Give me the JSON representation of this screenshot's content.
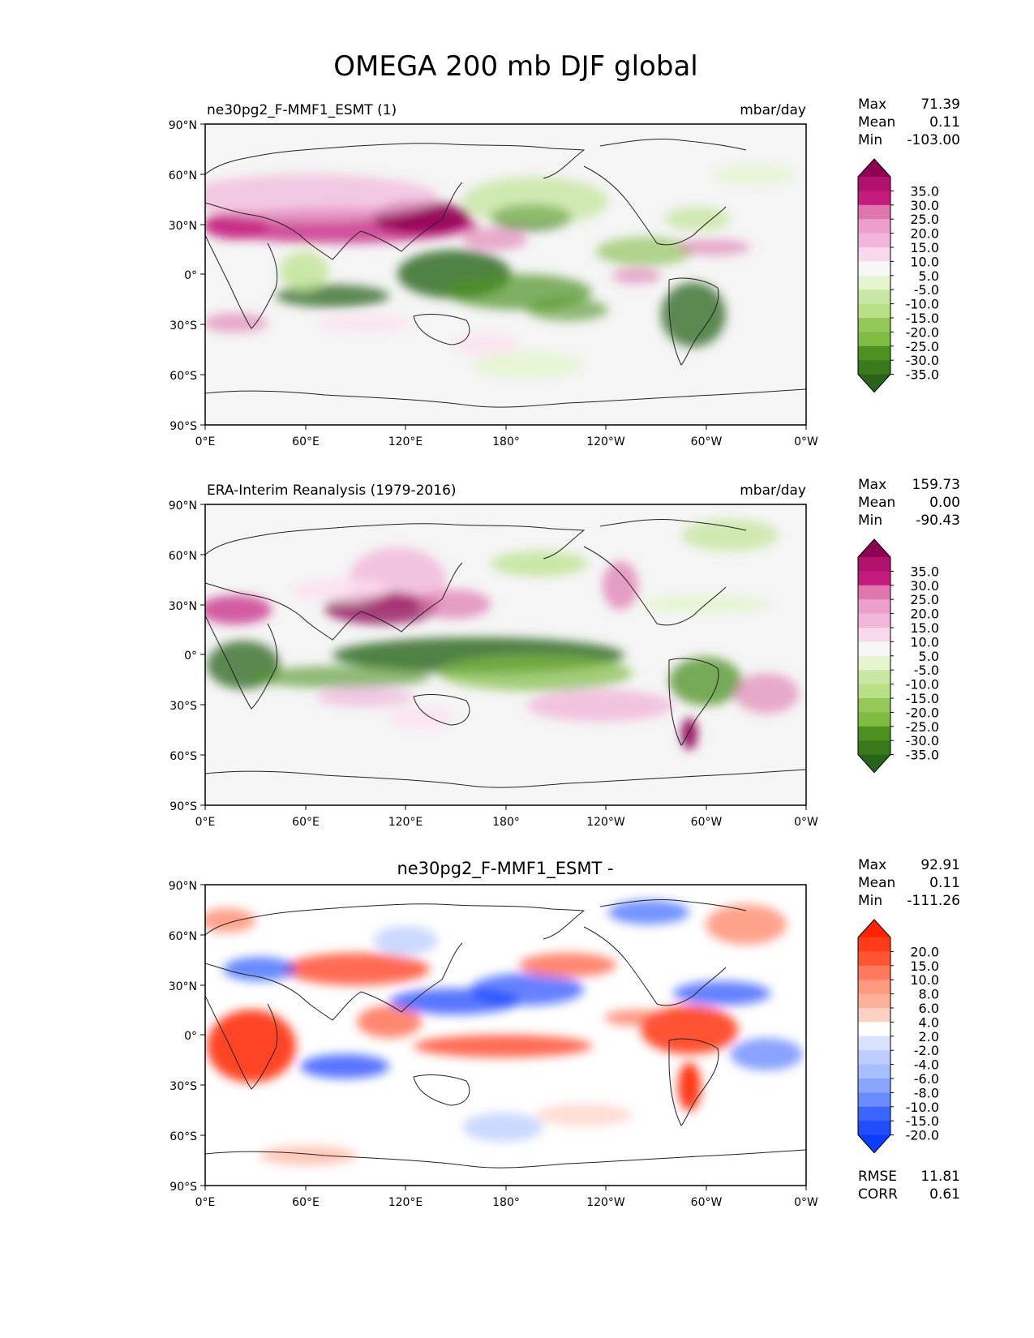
{
  "title": "OMEGA 200 mb DJF global",
  "lat_ticks": [
    "90°N",
    "60°N",
    "30°N",
    "0°",
    "30°S",
    "60°S",
    "90°S"
  ],
  "lon_ticks": [
    "0°E",
    "60°E",
    "120°E",
    "180°",
    "120°W",
    "60°W",
    "0°W"
  ],
  "colors": {
    "seq_top": "#8e0152",
    "seq_bottom": "#276419",
    "diff_top": "#ff2400",
    "diff_bottom": "#0a3dff",
    "ocean_bg": "#f5f5f5",
    "diff_bg": "#ffffff"
  },
  "panels": [
    {
      "left_title": "ne30pg2_F-MMF1_ESMT (1)",
      "right_title": "mbar/day",
      "center_title": "",
      "stats": {
        "max_label": "Max",
        "max_value": "71.39",
        "mean_label": "Mean",
        "mean_value": "0.11",
        "min_label": "Min",
        "min_value": "-103.00"
      },
      "colorbar": {
        "palette": "PiYG",
        "levels": [
          "35.0",
          "30.0",
          "25.0",
          "20.0",
          "15.0",
          "10.0",
          "5.0",
          "-5.0",
          "-10.0",
          "-15.0",
          "-20.0",
          "-25.0",
          "-30.0",
          "-35.0"
        ]
      }
    },
    {
      "left_title": "ERA-Interim Reanalysis (1979-2016)",
      "right_title": "mbar/day",
      "center_title": "",
      "stats": {
        "max_label": "Max",
        "max_value": "159.73",
        "mean_label": "Mean",
        "mean_value": "0.00",
        "min_label": "Min",
        "min_value": "-90.43"
      },
      "colorbar": {
        "palette": "PiYG",
        "levels": [
          "35.0",
          "30.0",
          "25.0",
          "20.0",
          "15.0",
          "10.0",
          "5.0",
          "-5.0",
          "-10.0",
          "-15.0",
          "-20.0",
          "-25.0",
          "-30.0",
          "-35.0"
        ]
      }
    },
    {
      "left_title": "",
      "right_title": "",
      "center_title": "ne30pg2_F-MMF1_ESMT -",
      "stats": {
        "max_label": "Max",
        "max_value": "92.91",
        "mean_label": "Mean",
        "mean_value": "0.11",
        "min_label": "Min",
        "min_value": "-111.26"
      },
      "colorbar": {
        "palette": "RdBu_diff",
        "levels": [
          "20.0",
          "15.0",
          "10.0",
          "8.0",
          "6.0",
          "4.0",
          "2.0",
          "-2.0",
          "-4.0",
          "-6.0",
          "-8.0",
          "-10.0",
          "-15.0",
          "-20.0"
        ]
      },
      "metrics": {
        "rmse_label": "RMSE",
        "rmse_value": "11.81",
        "corr_label": "CORR",
        "corr_value": "0.61"
      }
    }
  ]
}
